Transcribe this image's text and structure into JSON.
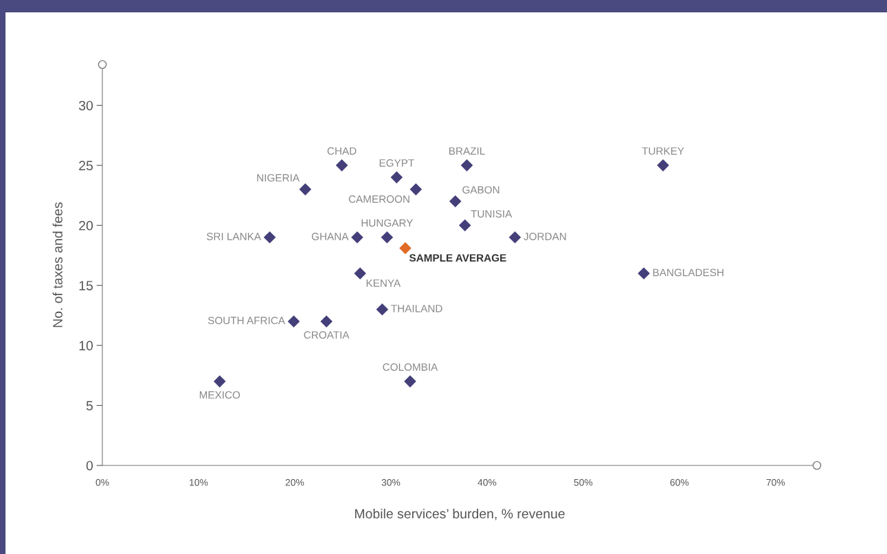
{
  "chart_data": {
    "type": "scatter",
    "xlabel": "Mobile services’ burden, % revenue",
    "ylabel": "No. of taxes and fees",
    "marker": "diamond",
    "grid": false,
    "legend": false,
    "xlim": [
      0,
      74.3
    ],
    "ylim": [
      0,
      33.4
    ],
    "xticks": [
      {
        "value": 0,
        "label": "0%"
      },
      {
        "value": 10,
        "label": "10%"
      },
      {
        "value": 20,
        "label": "20%"
      },
      {
        "value": 30,
        "label": "30%"
      },
      {
        "value": 40,
        "label": "40%"
      },
      {
        "value": 50,
        "label": "50%"
      },
      {
        "value": 60,
        "label": "60%"
      },
      {
        "value": 70,
        "label": "70%"
      }
    ],
    "yticks": [
      0,
      5,
      10,
      15,
      20,
      25,
      30
    ],
    "series": [
      {
        "name": "MEXICO",
        "color": "#443f79",
        "x": [
          12.2
        ],
        "values": [
          7
        ]
      },
      {
        "name": "SOUTH AFRICA",
        "color": "#443f79",
        "x": [
          19.9
        ],
        "values": [
          12
        ]
      },
      {
        "name": "CROATIA",
        "color": "#443f79",
        "x": [
          23.3
        ],
        "values": [
          12
        ]
      },
      {
        "name": "SRI LANKA",
        "color": "#443f79",
        "x": [
          17.4
        ],
        "values": [
          19
        ]
      },
      {
        "name": "NIGERIA",
        "color": "#443f79",
        "x": [
          21.1
        ],
        "values": [
          23
        ]
      },
      {
        "name": "CHAD",
        "color": "#443f79",
        "x": [
          24.9
        ],
        "values": [
          25
        ]
      },
      {
        "name": "GHANA",
        "color": "#443f79",
        "x": [
          26.5
        ],
        "values": [
          19
        ]
      },
      {
        "name": "KENYA",
        "color": "#443f79",
        "x": [
          26.8
        ],
        "values": [
          16
        ]
      },
      {
        "name": "HUNGARY",
        "color": "#443f79",
        "x": [
          29.6
        ],
        "values": [
          19
        ]
      },
      {
        "name": "THAILAND",
        "color": "#443f79",
        "x": [
          29.1
        ],
        "values": [
          13
        ]
      },
      {
        "name": "EGYPT",
        "color": "#443f79",
        "x": [
          30.6
        ],
        "values": [
          24
        ]
      },
      {
        "name": "CAMEROON",
        "color": "#443f79",
        "x": [
          32.6
        ],
        "values": [
          23
        ]
      },
      {
        "name": "COLOMBIA",
        "color": "#443f79",
        "x": [
          32.0
        ],
        "values": [
          7
        ]
      },
      {
        "name": "SAMPLE AVERAGE",
        "color": "#e06a26",
        "x": [
          31.5
        ],
        "values": [
          18.1
        ]
      },
      {
        "name": "GABON",
        "color": "#443f79",
        "x": [
          36.7
        ],
        "values": [
          22
        ]
      },
      {
        "name": "BRAZIL",
        "color": "#443f79",
        "x": [
          37.9
        ],
        "values": [
          25
        ]
      },
      {
        "name": "TUNISIA",
        "color": "#443f79",
        "x": [
          37.7
        ],
        "values": [
          20
        ]
      },
      {
        "name": "JORDAN",
        "color": "#443f79",
        "x": [
          42.9
        ],
        "values": [
          19
        ]
      },
      {
        "name": "BANGLADESH",
        "color": "#443f79",
        "x": [
          56.3
        ],
        "values": [
          16
        ]
      },
      {
        "name": "TURKEY",
        "color": "#443f79",
        "x": [
          58.3
        ],
        "values": [
          25
        ]
      }
    ]
  }
}
